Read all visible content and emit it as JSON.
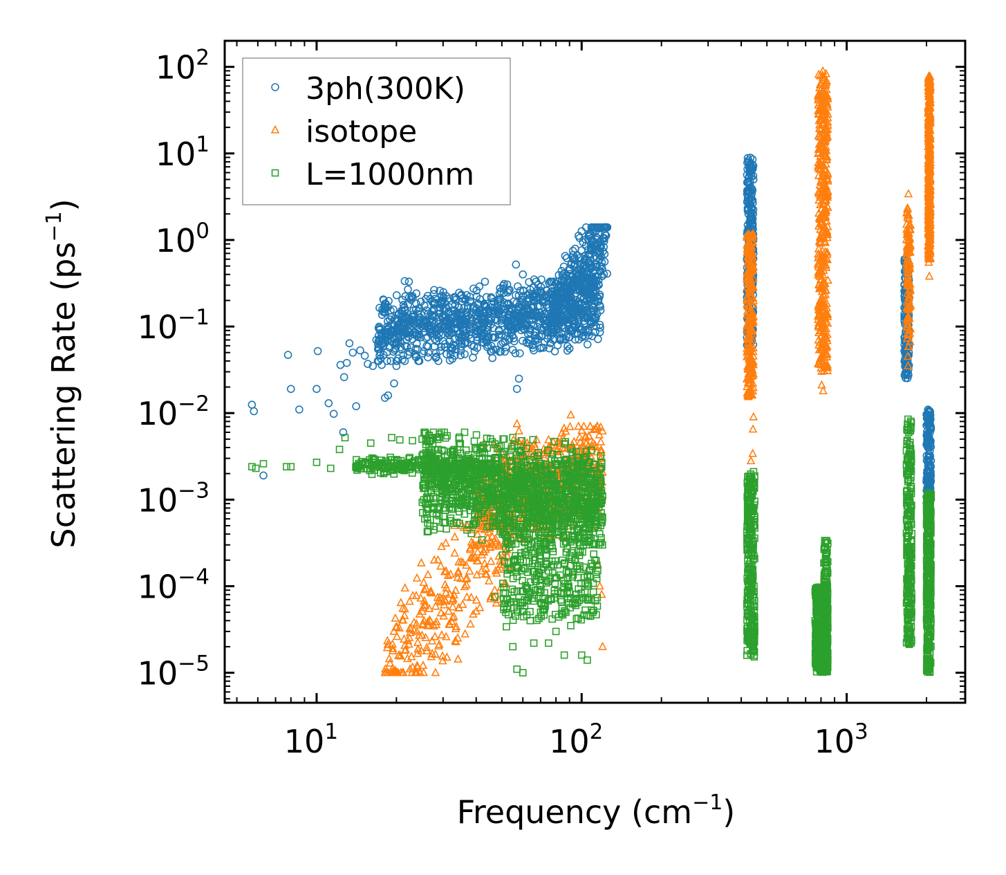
{
  "chart_data": {
    "type": "scatter",
    "xlabel": "Frequency (cm",
    "xlabel_exp": "−1",
    "xlabel_close": ")",
    "ylabel": "Scattering Rate (ps",
    "ylabel_exp": "−1",
    "ylabel_close": ")",
    "xscale": "log",
    "yscale": "log",
    "xlim": [
      4.5,
      2800
    ],
    "ylim": [
      4.5e-06,
      200
    ],
    "x_ticks": [
      {
        "value": 10,
        "base": "10",
        "exp": "1"
      },
      {
        "value": 100,
        "base": "10",
        "exp": "2"
      },
      {
        "value": 1000,
        "base": "10",
        "exp": "3"
      }
    ],
    "y_ticks": [
      {
        "value": 100,
        "base": "10",
        "exp": "2"
      },
      {
        "value": 10,
        "base": "10",
        "exp": "1"
      },
      {
        "value": 1,
        "base": "10",
        "exp": "0"
      },
      {
        "value": 0.1,
        "base": "10",
        "exp": "−1"
      },
      {
        "value": 0.01,
        "base": "10",
        "exp": "−2"
      },
      {
        "value": 0.001,
        "base": "10",
        "exp": "−3"
      },
      {
        "value": 0.0001,
        "base": "10",
        "exp": "−4"
      },
      {
        "value": 1e-05,
        "base": "10",
        "exp": "−5"
      }
    ],
    "legend_position": "top-left",
    "series": [
      {
        "name": "3ph(300K)",
        "marker": "circle",
        "color": "#1f77b4",
        "points": [
          [
            5.7,
            0.0125
          ],
          [
            5.8,
            0.0105
          ],
          [
            6.3,
            0.0019
          ],
          [
            7.8,
            0.047
          ],
          [
            8.0,
            0.019
          ],
          [
            8.6,
            0.011
          ],
          [
            10.1,
            0.052
          ],
          [
            10.0,
            0.019
          ],
          [
            11.1,
            0.013
          ],
          [
            11.6,
            0.0098
          ],
          [
            12.3,
            0.036
          ],
          [
            12.6,
            0.006
          ],
          [
            12.7,
            0.026
          ],
          [
            13.0,
            0.038
          ],
          [
            13.3,
            0.064
          ],
          [
            13.7,
            0.05
          ],
          [
            14.1,
            0.012
          ],
          [
            14.6,
            0.053
          ],
          [
            15.2,
            0.046
          ],
          [
            15.6,
            0.037
          ],
          [
            16.3,
            0.035
          ],
          [
            16.8,
            0.07
          ],
          [
            17.2,
            0.055
          ],
          [
            17.6,
            0.036
          ],
          [
            18.1,
            0.015
          ],
          [
            18.6,
            0.016
          ],
          [
            19.1,
            0.068
          ],
          [
            19.6,
            0.022
          ],
          [
            20.0,
            0.035
          ],
          [
            21.5,
            0.335
          ],
          [
            22.3,
            0.33
          ],
          [
            23.0,
            0.12
          ],
          [
            56.5,
            0.52
          ],
          [
            58.0,
            0.025
          ],
          [
            57,
            0.019
          ],
          [
            53,
            0.26
          ],
          [
            70,
            0.26
          ],
          [
            60,
            0.4
          ]
        ],
        "bands": [
          {
            "x": [
              17,
              118
            ],
            "y": [
              0.04,
              0.35
            ],
            "n": 1100,
            "trend": 0.55
          },
          {
            "x": [
              78,
              125
            ],
            "y": [
              0.12,
              1.4
            ],
            "n": 350,
            "trend": 1.8
          },
          {
            "x": [
              420,
              445
            ],
            "y": [
              0.06,
              9.0
            ],
            "n": 260,
            "trend": 0
          },
          {
            "x": [
              1650,
              1720
            ],
            "y": [
              0.025,
              0.6
            ],
            "n": 150,
            "trend": 0
          },
          {
            "x": [
              2000,
              2080
            ],
            "y": [
              0.0009,
              0.011
            ],
            "n": 160,
            "trend": 0
          }
        ]
      },
      {
        "name": "isotope",
        "marker": "triangle",
        "color": "#ff7f0e",
        "points": [
          [
            57,
            0.0075
          ],
          [
            58,
            0.0062
          ],
          [
            91,
            0.0095
          ],
          [
            120,
            2e-05
          ],
          [
            119,
            8e-05
          ],
          [
            117,
            0.0001
          ],
          [
            115,
            0.00018
          ],
          [
            55,
            0.0025
          ],
          [
            75,
            0.004
          ],
          [
            100,
            0.0022
          ],
          [
            108,
            0.0021
          ],
          [
            112,
            0.0012
          ],
          [
            445,
            0.009
          ],
          [
            443,
            0.0065
          ],
          [
            442,
            0.0034
          ],
          [
            435,
            0.0028
          ],
          [
            805,
            0.021
          ],
          [
            815,
            0.018
          ],
          [
            1705,
            0.035
          ],
          [
            1700,
            0.045
          ],
          [
            1710,
            3.4
          ],
          [
            2050,
            0.38
          ],
          [
            2040,
            0.55
          ]
        ],
        "bands": [
          {
            "x": [
              18,
              55
            ],
            "y": [
              1e-05,
              0.0005
            ],
            "n": 300,
            "trend": 2.2
          },
          {
            "x": [
              40,
              120
            ],
            "y": [
              0.0003,
              0.007
            ],
            "n": 650,
            "trend": 0.6
          },
          {
            "x": [
              420,
              445
            ],
            "y": [
              0.015,
              1.2
            ],
            "n": 230,
            "trend": 0
          },
          {
            "x": [
              780,
              850
            ],
            "y": [
              0.03,
              90
            ],
            "n": 420,
            "trend": 0
          },
          {
            "x": [
              1680,
              1740
            ],
            "y": [
              0.05,
              2.5
            ],
            "n": 120,
            "trend": 0
          },
          {
            "x": [
              2030,
              2070
            ],
            "y": [
              0.6,
              80
            ],
            "n": 360,
            "trend": 0
          }
        ]
      },
      {
        "name": "L=1000nm",
        "marker": "square",
        "color": "#2ca02c",
        "points": [
          [
            5.7,
            0.0024
          ],
          [
            5.9,
            0.0023
          ],
          [
            6.3,
            0.0026
          ],
          [
            7.7,
            0.0024
          ],
          [
            8.0,
            0.0024
          ],
          [
            10.0,
            0.0027
          ],
          [
            11.3,
            0.0023
          ],
          [
            12.2,
            0.0038
          ],
          [
            12.8,
            0.0052
          ],
          [
            14.5,
            0.0025
          ],
          [
            16.0,
            0.0045
          ],
          [
            18.0,
            0.0025
          ],
          [
            19.2,
            0.0052
          ],
          [
            20.6,
            0.0049
          ],
          [
            23.0,
            0.0048
          ],
          [
            25.0,
            0.005
          ],
          [
            47,
            7.5e-05
          ],
          [
            52,
            3.4e-05
          ],
          [
            55,
            2e-05
          ],
          [
            57,
            1.1e-05
          ],
          [
            60,
            1e-05
          ],
          [
            63,
            7.5e-05
          ],
          [
            66,
            2.2e-05
          ],
          [
            70,
            5e-05
          ],
          [
            75,
            2.2e-05
          ],
          [
            80,
            3e-05
          ],
          [
            86,
            1.6e-05
          ],
          [
            91,
            3.5e-05
          ],
          [
            95,
            6e-05
          ],
          [
            100,
            1.6e-05
          ],
          [
            105,
            1.4e-05
          ],
          [
            108,
            4.5e-05
          ],
          [
            120,
            0.0011
          ],
          [
            119,
            0.0024
          ],
          [
            118,
            0.0032
          ]
        ],
        "bands": [
          {
            "x": [
              14,
              45
            ],
            "y": [
              0.0019,
              0.0032
            ],
            "n": 240,
            "trend": -0.1
          },
          {
            "x": [
              25,
              120
            ],
            "y": [
              0.0003,
              0.006
            ],
            "n": 1150,
            "trend": -0.4
          },
          {
            "x": [
              50,
              115
            ],
            "y": [
              4e-05,
              0.002
            ],
            "n": 520,
            "trend": 0
          },
          {
            "x": [
              420,
              450
            ],
            "y": [
              1.5e-05,
              0.0022
            ],
            "n": 300,
            "trend": 0
          },
          {
            "x": [
              760,
              850
            ],
            "y": [
              1e-05,
              0.0001
            ],
            "n": 320,
            "trend": 0
          },
          {
            "x": [
              820,
              850
            ],
            "y": [
              1e-05,
              0.00035
            ],
            "n": 120,
            "trend": 0
          },
          {
            "x": [
              1680,
              1760
            ],
            "y": [
              2e-05,
              0.0085
            ],
            "n": 260,
            "trend": 0
          },
          {
            "x": [
              2000,
              2080
            ],
            "y": [
              1e-05,
              0.0012
            ],
            "n": 340,
            "trend": 0
          }
        ]
      }
    ]
  }
}
